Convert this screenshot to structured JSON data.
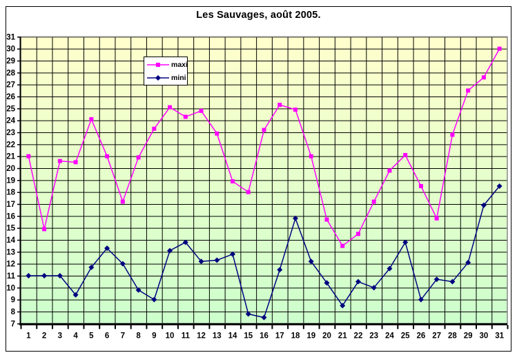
{
  "title": "Les Sauvages, août 2005.",
  "legend": {
    "items": [
      {
        "label": "maxi",
        "color": "#FF00FF",
        "marker": "square"
      },
      {
        "label": "mini",
        "color": "#000080",
        "marker": "diamond"
      }
    ]
  },
  "colors": {
    "maxi_line": "#FF00FF",
    "mini_line": "#000080",
    "grid": "#000000",
    "plot_border": "#808080",
    "bg_top": "#FFFFCC",
    "bg_bottom": "#CCFFCC",
    "text": "#000000"
  },
  "chart_data": {
    "type": "line",
    "title": "Les Sauvages, août 2005.",
    "xlabel": "",
    "ylabel": "",
    "x": [
      1,
      2,
      3,
      4,
      5,
      6,
      7,
      8,
      9,
      10,
      11,
      12,
      13,
      14,
      15,
      16,
      17,
      18,
      19,
      20,
      21,
      22,
      23,
      24,
      25,
      26,
      27,
      28,
      29,
      30,
      31
    ],
    "series": [
      {
        "name": "maxi",
        "color": "#FF00FF",
        "marker": "square",
        "values": [
          21.0,
          14.9,
          20.6,
          20.5,
          24.1,
          21.0,
          17.2,
          20.9,
          23.3,
          25.1,
          24.3,
          24.8,
          22.9,
          18.9,
          18.0,
          23.2,
          25.3,
          24.9,
          21.0,
          15.7,
          13.5,
          14.5,
          17.2,
          19.8,
          21.1,
          18.5,
          15.8,
          22.8,
          26.5,
          27.6,
          30.0
        ]
      },
      {
        "name": "mini",
        "color": "#000080",
        "marker": "diamond",
        "values": [
          11.0,
          11.0,
          11.0,
          9.4,
          11.7,
          13.3,
          12.0,
          9.8,
          9.0,
          13.1,
          13.8,
          12.2,
          12.3,
          12.8,
          7.8,
          7.5,
          11.5,
          15.8,
          12.2,
          10.4,
          8.5,
          10.5,
          10.0,
          11.6,
          13.8,
          9.0,
          10.7,
          10.5,
          12.1,
          16.9,
          18.5
        ]
      }
    ],
    "ylim": [
      7,
      31
    ],
    "ytick_step": 1,
    "grid": true,
    "legend_position": "upper-left-inside",
    "plot_bg_gradient": [
      "#FFFFCC",
      "#CCFFCC"
    ]
  }
}
